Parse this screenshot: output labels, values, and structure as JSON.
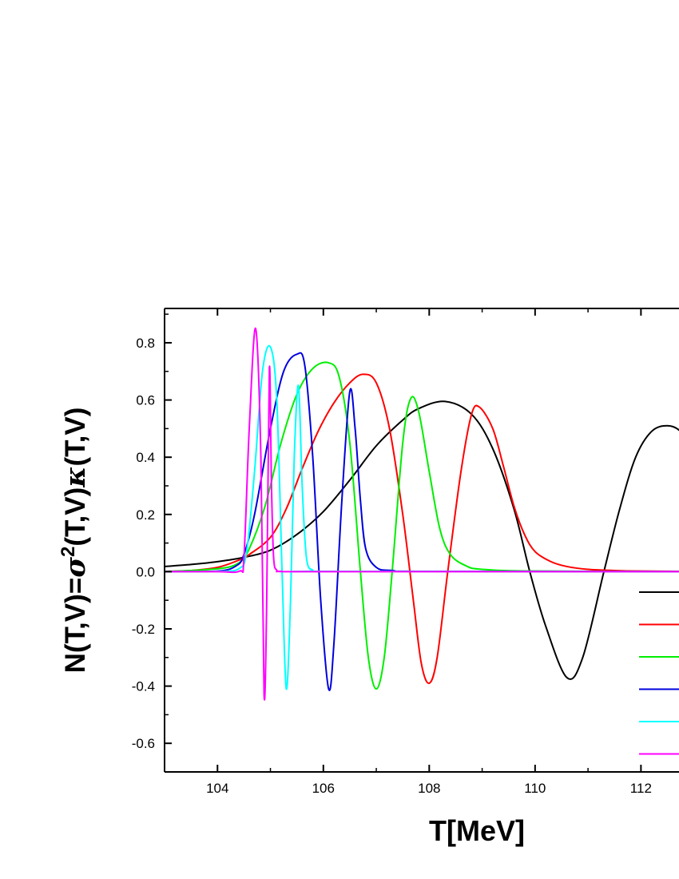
{
  "chart_data": {
    "type": "line",
    "title": "",
    "xlabel": "T[MeV]",
    "ylabel": "N(T,V)=σ²(T,V)κ(T,V)",
    "ylabel_parts": {
      "lhs": "N(T,V)=",
      "sigma": "σ",
      "power": "2",
      "mid": "(T,V)",
      "kappa": "κ",
      "rhs": "(T,V)"
    },
    "xlim": [
      103,
      112.9
    ],
    "ylim": [
      -0.7,
      0.92
    ],
    "xticks": [
      104,
      106,
      108,
      110,
      112
    ],
    "xtick_labels": [
      "104",
      "106",
      "108",
      "110",
      "112"
    ],
    "yticks": [
      -0.6,
      -0.4,
      -0.2,
      0.0,
      0.2,
      0.4,
      0.6,
      0.8
    ],
    "ytick_labels": [
      "-0.6",
      "-0.4",
      "-0.2",
      "0.0",
      "0.2",
      "0.4",
      "0.6",
      "0.8"
    ],
    "grid": false,
    "legend_position": "bottom-right (cut off at right edge)",
    "series": [
      {
        "color": "#000000",
        "x": [
          103.0,
          103.5,
          104.0,
          104.5,
          105.0,
          105.5,
          106.0,
          106.5,
          107.0,
          107.5,
          107.8,
          108.3,
          108.8,
          109.2,
          109.6,
          109.9,
          110.2,
          110.6,
          110.9,
          111.3,
          111.6,
          111.9,
          112.2,
          112.5,
          112.75,
          112.9
        ],
        "values": [
          0.018,
          0.025,
          0.035,
          0.05,
          0.075,
          0.13,
          0.21,
          0.32,
          0.44,
          0.53,
          0.57,
          0.595,
          0.55,
          0.43,
          0.22,
          0.0,
          -0.19,
          -0.37,
          -0.3,
          0.0,
          0.22,
          0.4,
          0.49,
          0.51,
          0.49,
          0.44
        ]
      },
      {
        "color": "#ff0000",
        "x": [
          103.0,
          103.5,
          104.0,
          104.4,
          104.6,
          105.0,
          105.3,
          105.6,
          105.9,
          106.2,
          106.5,
          106.75,
          107.0,
          107.25,
          107.5,
          107.7,
          107.85,
          108.0,
          108.15,
          108.35,
          108.6,
          108.8,
          108.95,
          109.2,
          109.4,
          109.6,
          109.8,
          110.0,
          110.3,
          110.6,
          111.0,
          111.5,
          112.0,
          112.9
        ],
        "values": [
          0.001,
          0.004,
          0.015,
          0.04,
          0.06,
          0.12,
          0.22,
          0.36,
          0.49,
          0.59,
          0.66,
          0.69,
          0.66,
          0.5,
          0.2,
          -0.1,
          -0.32,
          -0.39,
          -0.3,
          0.0,
          0.35,
          0.55,
          0.575,
          0.5,
          0.37,
          0.23,
          0.13,
          0.07,
          0.035,
          0.018,
          0.008,
          0.004,
          0.002,
          0.001
        ]
      },
      {
        "color": "#00ee00",
        "x": [
          103.0,
          104.0,
          104.4,
          104.6,
          104.9,
          105.2,
          105.5,
          105.8,
          106.1,
          106.3,
          106.5,
          106.7,
          106.85,
          107.0,
          107.15,
          107.3,
          107.5,
          107.65,
          107.8,
          108.0,
          108.2,
          108.4,
          108.7,
          109.0,
          110.0,
          112.9
        ],
        "values": [
          0.0,
          0.01,
          0.03,
          0.08,
          0.23,
          0.45,
          0.62,
          0.71,
          0.73,
          0.68,
          0.45,
          0.0,
          -0.3,
          -0.41,
          -0.3,
          0.0,
          0.45,
          0.605,
          0.56,
          0.35,
          0.15,
          0.06,
          0.02,
          0.008,
          0.002,
          0.0
        ]
      },
      {
        "color": "#0000dd",
        "x": [
          103.0,
          104.0,
          104.35,
          104.5,
          104.7,
          105.0,
          105.25,
          105.5,
          105.65,
          105.8,
          105.95,
          106.1,
          106.2,
          106.35,
          106.5,
          106.6,
          106.7,
          106.8,
          107.0,
          107.3,
          108.0,
          112.9
        ],
        "values": [
          0.0,
          0.002,
          0.02,
          0.06,
          0.2,
          0.5,
          0.7,
          0.76,
          0.72,
          0.4,
          -0.1,
          -0.41,
          -0.25,
          0.25,
          0.63,
          0.5,
          0.25,
          0.08,
          0.015,
          0.004,
          0.001,
          0.0
        ]
      },
      {
        "color": "#00ffff",
        "x": [
          103.0,
          104.0,
          104.4,
          104.55,
          104.7,
          104.85,
          105.0,
          105.12,
          105.22,
          105.3,
          105.38,
          105.45,
          105.53,
          105.6,
          105.68,
          105.8,
          106.0,
          112.9
        ],
        "values": [
          0.0,
          0.001,
          0.01,
          0.07,
          0.35,
          0.7,
          0.785,
          0.6,
          0.0,
          -0.41,
          -0.1,
          0.4,
          0.65,
          0.3,
          0.05,
          0.005,
          0.001,
          0.0
        ]
      },
      {
        "color": "#ff00ff",
        "x": [
          103.0,
          104.0,
          104.42,
          104.5,
          104.6,
          104.72,
          104.82,
          104.88,
          104.93,
          104.98,
          105.02,
          105.06,
          105.12,
          105.2,
          106.0,
          112.9
        ],
        "values": [
          0.0,
          0.0,
          0.002,
          0.05,
          0.5,
          0.85,
          0.4,
          -0.43,
          -0.1,
          0.71,
          0.3,
          0.05,
          0.005,
          0.001,
          0.0,
          0.0
        ]
      }
    ]
  }
}
